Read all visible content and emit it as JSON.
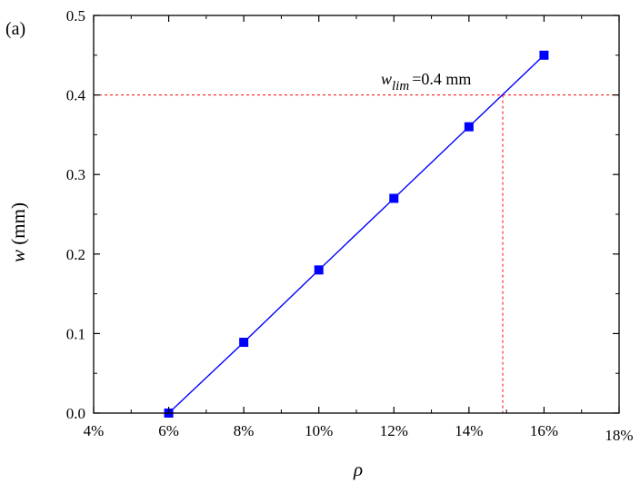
{
  "panel_label": "(a)",
  "chart_data": {
    "type": "line",
    "title": "",
    "xlabel": "ρ",
    "ylabel": {
      "var": "w",
      "unit": " (mm)"
    },
    "x_ticks": [
      {
        "value": 4,
        "label": "4%"
      },
      {
        "value": 6,
        "label": "6%"
      },
      {
        "value": 8,
        "label": "8%"
      },
      {
        "value": 10,
        "label": "10%"
      },
      {
        "value": 12,
        "label": "12%"
      },
      {
        "value": 14,
        "label": "14%"
      },
      {
        "value": 16,
        "label": "16%"
      },
      {
        "value": 18,
        "label": "18%"
      }
    ],
    "y_ticks": [
      {
        "value": 0.0,
        "label": "0.0"
      },
      {
        "value": 0.1,
        "label": "0.1"
      },
      {
        "value": 0.2,
        "label": "0.2"
      },
      {
        "value": 0.3,
        "label": "0.3"
      },
      {
        "value": 0.4,
        "label": "0.4"
      },
      {
        "value": 0.5,
        "label": "0.5"
      }
    ],
    "xlim": [
      4,
      18
    ],
    "ylim": [
      0,
      0.5
    ],
    "grid": false,
    "series": [
      {
        "color": "#0000ff",
        "marker": "square",
        "x": [
          6,
          8,
          10,
          12,
          14,
          16
        ],
        "y": [
          0.0,
          0.089,
          0.18,
          0.27,
          0.36,
          0.45
        ]
      }
    ],
    "reference_lines": {
      "color": "#ff0000",
      "style": "dashed",
      "horizontal_y": 0.4,
      "vertical_x": 14.9
    },
    "annotation": {
      "var": "w",
      "subscript": "lim",
      "text": "=0.4 mm"
    }
  }
}
